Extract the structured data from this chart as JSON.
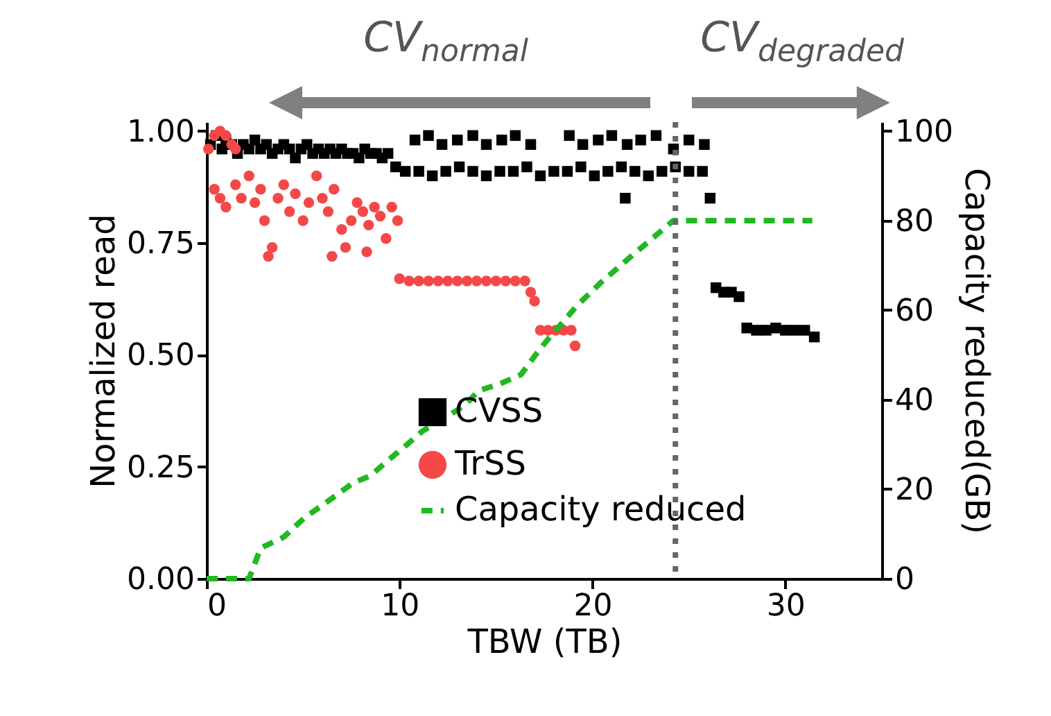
{
  "chart_data": {
    "type": "scatter",
    "xlabel": "TBW (TB)",
    "ylabel": "Normalized read",
    "y2label": "Capacity reduced(GB)",
    "annotations": [
      "CV$_{normal}$",
      "CV$_{degraded}$"
    ],
    "xlim": [
      0,
      35
    ],
    "xticks": [
      0,
      10,
      20,
      30
    ],
    "ylim": [
      0,
      1.02
    ],
    "yticks": [
      {
        "value": 0,
        "label": "0.00"
      },
      {
        "value": 0.25,
        "label": "0.25"
      },
      {
        "value": 0.5,
        "label": "0.50"
      },
      {
        "value": 0.75,
        "label": "0.75"
      },
      {
        "value": 1,
        "label": "1.00"
      }
    ],
    "y2lim": [
      0,
      102
    ],
    "y2ticks": [
      0,
      20,
      40,
      60,
      80,
      100
    ],
    "legend": "bottom",
    "ref_lines": [
      {
        "axis": "x",
        "value": 24.3,
        "color": "#666666",
        "line_style": "dotted"
      }
    ],
    "series": [
      {
        "name": "CVSS",
        "color": "#000000",
        "marker": "square",
        "x": [
          0.2,
          0.5,
          0.8,
          1.0,
          1.3,
          1.6,
          1.9,
          2.2,
          2.5,
          2.8,
          3.1,
          3.4,
          3.7,
          4.0,
          4.3,
          4.6,
          4.9,
          5.2,
          5.5,
          5.8,
          6.1,
          6.4,
          6.7,
          7.0,
          7.3,
          7.6,
          7.9,
          8.2,
          8.5,
          8.8,
          9.1,
          9.4,
          10.8,
          11.5,
          12.2,
          13,
          13.8,
          14.5,
          15.3,
          16,
          16.8,
          18.8,
          19.5,
          20.3,
          21,
          21.8,
          22.5,
          23.3,
          24.2,
          25,
          25.8,
          9.8,
          10.3,
          11,
          11.7,
          12.4,
          13.1,
          13.8,
          14.5,
          15.2,
          15.9,
          16.6,
          17.3,
          18,
          18.7,
          19.4,
          20.1,
          20.8,
          21.5,
          22.2,
          22.9,
          23.6,
          24.3,
          25,
          25.7,
          21.7,
          26.1,
          26.4,
          26.8,
          27.2,
          27.6,
          28,
          28.5,
          29,
          29.5,
          30,
          30.5,
          31,
          31.5
        ],
        "values": [
          0.97,
          0.99,
          0.96,
          0.98,
          0.97,
          0.95,
          0.97,
          0.96,
          0.98,
          0.96,
          0.97,
          0.95,
          0.96,
          0.97,
          0.96,
          0.94,
          0.96,
          0.97,
          0.95,
          0.96,
          0.95,
          0.96,
          0.95,
          0.96,
          0.95,
          0.95,
          0.94,
          0.96,
          0.95,
          0.95,
          0.94,
          0.95,
          0.98,
          0.99,
          0.97,
          0.98,
          0.99,
          0.97,
          0.98,
          0.99,
          0.97,
          0.99,
          0.97,
          0.98,
          0.99,
          0.97,
          0.98,
          0.99,
          0.96,
          0.98,
          0.97,
          0.92,
          0.91,
          0.91,
          0.9,
          0.91,
          0.92,
          0.91,
          0.9,
          0.91,
          0.91,
          0.92,
          0.9,
          0.91,
          0.91,
          0.92,
          0.9,
          0.91,
          0.92,
          0.91,
          0.9,
          0.91,
          0.92,
          0.91,
          0.91,
          0.85,
          0.85,
          0.65,
          0.64,
          0.64,
          0.63,
          0.56,
          0.555,
          0.555,
          0.56,
          0.555,
          0.555,
          0.555,
          0.54
        ]
      },
      {
        "name": "TrSS",
        "color": "#f44848",
        "marker": "circle",
        "x": [
          0.1,
          0.4,
          0.7,
          1.0,
          1.3,
          1.5,
          0.4,
          0.7,
          1.0,
          1.5,
          1.8,
          2.2,
          2.5,
          2.8,
          3.0,
          3.2,
          3.4,
          3.7,
          4.0,
          4.3,
          4.6,
          5.0,
          5.3,
          5.7,
          6.0,
          6.3,
          6.6,
          7.0,
          7.2,
          7.5,
          7.8,
          8.1,
          8.4,
          8.7,
          9.0,
          9.3,
          9.6,
          9.9,
          8.3,
          6.5,
          10.0,
          10.5,
          11,
          11.5,
          12,
          12.5,
          13,
          13.5,
          14,
          14.5,
          15,
          15.5,
          16,
          16.5,
          16.8,
          17,
          17.3,
          17.7,
          18.1,
          18.5,
          18.9,
          19.1
        ],
        "values": [
          0.96,
          0.99,
          1.0,
          0.99,
          0.97,
          0.96,
          0.87,
          0.85,
          0.83,
          0.88,
          0.85,
          0.9,
          0.84,
          0.87,
          0.8,
          0.72,
          0.74,
          0.85,
          0.88,
          0.82,
          0.86,
          0.8,
          0.84,
          0.9,
          0.85,
          0.82,
          0.87,
          0.78,
          0.74,
          0.8,
          0.84,
          0.82,
          0.79,
          0.83,
          0.81,
          0.76,
          0.83,
          0.8,
          0.73,
          0.72,
          0.67,
          0.665,
          0.665,
          0.665,
          0.665,
          0.665,
          0.665,
          0.665,
          0.665,
          0.665,
          0.665,
          0.665,
          0.665,
          0.665,
          0.64,
          0.62,
          0.555,
          0.555,
          0.555,
          0.555,
          0.555,
          0.52
        ]
      },
      {
        "name": "Capacity reduced",
        "type": "line",
        "axis": "y2",
        "color": "#22b822",
        "line_style": "dashed",
        "marker": "none",
        "x": [
          0,
          2.2,
          2.8,
          4,
          5.1,
          6.2,
          7.6,
          8.5,
          9.4,
          10.4,
          11.2,
          12.3,
          13.4,
          14.1,
          15.2,
          16.3,
          17,
          17.6,
          19.2,
          20.4,
          22,
          23.1,
          24.2,
          31.4
        ],
        "values": [
          0,
          0,
          6.8,
          9.3,
          13.7,
          17,
          21.4,
          23,
          26.4,
          30,
          33,
          35.7,
          38.8,
          42,
          43.5,
          45.6,
          49.7,
          53,
          61,
          66,
          72,
          76,
          80,
          80
        ]
      }
    ]
  }
}
